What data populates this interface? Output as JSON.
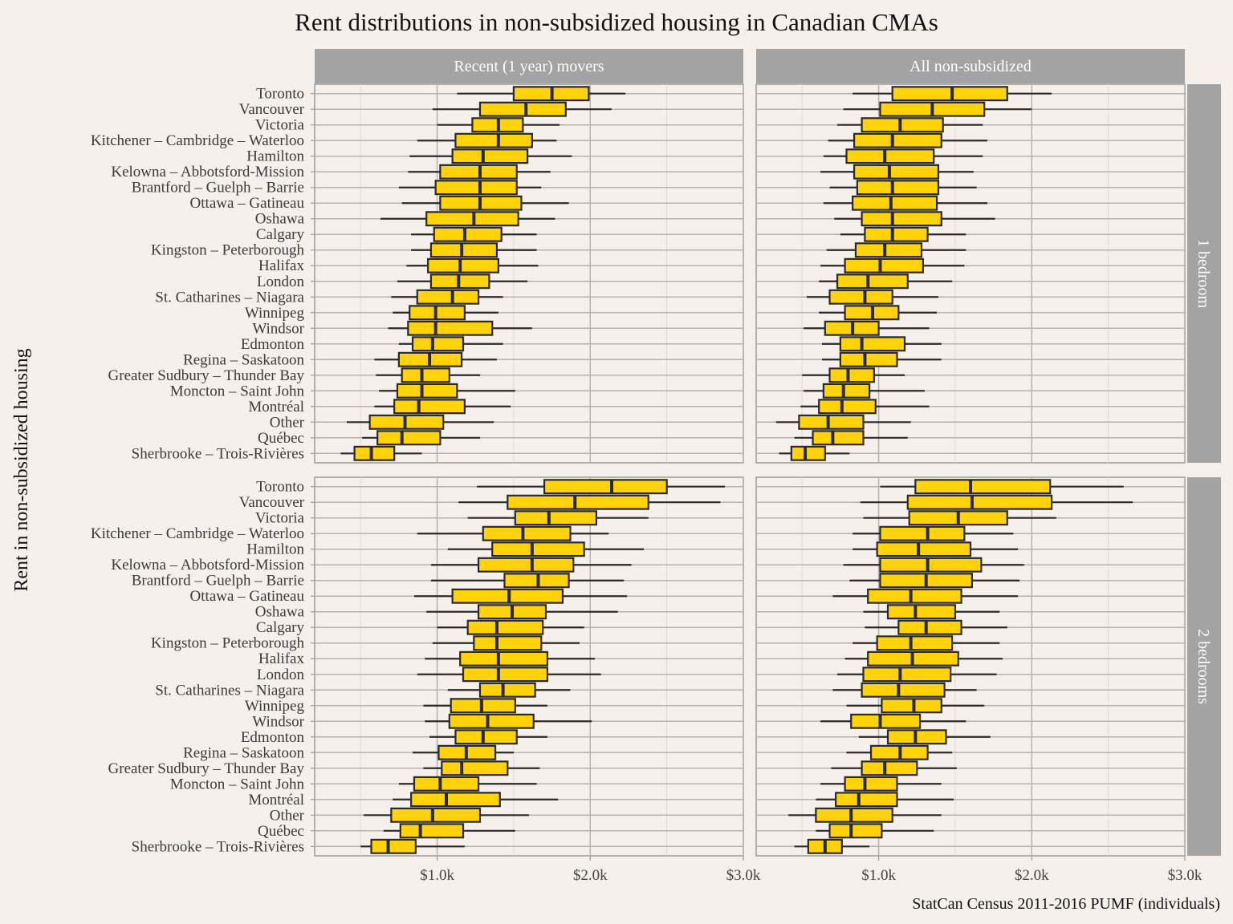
{
  "chart_data": {
    "type": "boxplot",
    "title": "Rent distributions in non-subsidized housing in Canadian CMAs",
    "xlabel": "",
    "ylabel": "Rent in non-subsidized housing",
    "caption": "StatCan Census 2011-2016 PUMF (individuals)",
    "x_unit": "thousand CAD per month",
    "xlim": [
      0.2,
      3.0
    ],
    "x_ticks": [
      1.0,
      2.0,
      3.0
    ],
    "x_tick_labels": [
      "$1.0k",
      "$2.0k",
      "$3.0k"
    ],
    "grid": true,
    "box_fill": "#FFD20A",
    "box_stroke": "#2a2a2a",
    "strip_fill": "#a3a3a3",
    "panel_background": "#f5f0eb",
    "columns": [
      "Recent (1 year) movers",
      "All non-subsidized"
    ],
    "rows": [
      "1 bedroom",
      "2 bedrooms"
    ],
    "categories": [
      "Toronto",
      "Vancouver",
      "Victoria",
      "Kitchener – Cambridge – Waterloo",
      "Hamilton",
      "Kelowna – Abbotsford-Mission",
      "Brantford – Guelph – Barrie",
      "Ottawa – Gatineau",
      "Oshawa",
      "Calgary",
      "Kingston – Peterborough",
      "Halifax",
      "London",
      "St. Catharines – Niagara",
      "Winnipeg",
      "Windsor",
      "Edmonton",
      "Regina – Saskatoon",
      "Greater Sudbury – Thunder Bay",
      "Moncton – Saint John",
      "Montréal",
      "Other",
      "Québec",
      "Sherbrooke – Trois-Rivières"
    ],
    "stat_order": [
      "whisker_low",
      "q1",
      "median",
      "q3",
      "whisker_high"
    ],
    "panels": [
      {
        "column": "Recent (1 year) movers",
        "row": "1 bedroom",
        "stats": [
          [
            1.13,
            1.5,
            1.75,
            1.99,
            2.23
          ],
          [
            0.97,
            1.28,
            1.58,
            1.84,
            2.14
          ],
          [
            1.0,
            1.23,
            1.4,
            1.56,
            1.8
          ],
          [
            0.87,
            1.12,
            1.4,
            1.62,
            1.78
          ],
          [
            0.82,
            1.1,
            1.3,
            1.59,
            1.88
          ],
          [
            0.81,
            1.02,
            1.28,
            1.52,
            1.74
          ],
          [
            0.75,
            0.99,
            1.28,
            1.52,
            1.68
          ],
          [
            0.77,
            1.02,
            1.28,
            1.55,
            1.86
          ],
          [
            0.63,
            0.93,
            1.24,
            1.53,
            1.77
          ],
          [
            0.83,
            0.98,
            1.18,
            1.42,
            1.65
          ],
          [
            0.83,
            0.96,
            1.16,
            1.39,
            1.65
          ],
          [
            0.8,
            0.94,
            1.15,
            1.4,
            1.66
          ],
          [
            0.74,
            0.96,
            1.14,
            1.34,
            1.59
          ],
          [
            0.7,
            0.87,
            1.1,
            1.27,
            1.43
          ],
          [
            0.71,
            0.82,
            0.99,
            1.18,
            1.4
          ],
          [
            0.68,
            0.81,
            0.99,
            1.36,
            1.62
          ],
          [
            0.75,
            0.84,
            0.97,
            1.17,
            1.43
          ],
          [
            0.59,
            0.75,
            0.95,
            1.16,
            1.39
          ],
          [
            0.6,
            0.77,
            0.9,
            1.08,
            1.28
          ],
          [
            0.62,
            0.74,
            0.9,
            1.13,
            1.51
          ],
          [
            0.59,
            0.72,
            0.88,
            1.18,
            1.48
          ],
          [
            0.41,
            0.56,
            0.79,
            1.04,
            1.37
          ],
          [
            0.51,
            0.61,
            0.77,
            1.02,
            1.28
          ],
          [
            0.37,
            0.46,
            0.57,
            0.72,
            0.9
          ]
        ]
      },
      {
        "column": "All non-subsidized",
        "row": "1 bedroom",
        "stats": [
          [
            0.83,
            1.09,
            1.48,
            1.84,
            2.13
          ],
          [
            0.77,
            1.01,
            1.35,
            1.69,
            2.0
          ],
          [
            0.73,
            0.89,
            1.14,
            1.42,
            1.68
          ],
          [
            0.67,
            0.84,
            1.09,
            1.41,
            1.71
          ],
          [
            0.64,
            0.79,
            1.04,
            1.36,
            1.68
          ],
          [
            0.62,
            0.84,
            1.07,
            1.39,
            1.62
          ],
          [
            0.68,
            0.86,
            1.09,
            1.39,
            1.64
          ],
          [
            0.64,
            0.83,
            1.08,
            1.38,
            1.71
          ],
          [
            0.71,
            0.89,
            1.09,
            1.41,
            1.76
          ],
          [
            0.75,
            0.91,
            1.09,
            1.32,
            1.57
          ],
          [
            0.66,
            0.85,
            1.04,
            1.28,
            1.57
          ],
          [
            0.62,
            0.78,
            1.01,
            1.29,
            1.56
          ],
          [
            0.61,
            0.73,
            0.93,
            1.19,
            1.48
          ],
          [
            0.53,
            0.68,
            0.91,
            1.09,
            1.39
          ],
          [
            0.61,
            0.78,
            0.96,
            1.13,
            1.38
          ],
          [
            0.51,
            0.65,
            0.83,
            1.0,
            1.33
          ],
          [
            0.63,
            0.75,
            0.89,
            1.17,
            1.41
          ],
          [
            0.63,
            0.75,
            0.91,
            1.12,
            1.41
          ],
          [
            0.5,
            0.68,
            0.8,
            0.97,
            1.17
          ],
          [
            0.51,
            0.64,
            0.77,
            0.94,
            1.3
          ],
          [
            0.49,
            0.61,
            0.76,
            0.98,
            1.33
          ],
          [
            0.33,
            0.48,
            0.67,
            0.9,
            1.21
          ],
          [
            0.45,
            0.57,
            0.7,
            0.9,
            1.19
          ],
          [
            0.35,
            0.43,
            0.52,
            0.65,
            0.81
          ]
        ]
      },
      {
        "column": "Recent (1 year) movers",
        "row": "2 bedrooms",
        "stats": [
          [
            1.26,
            1.7,
            2.14,
            2.5,
            2.88
          ],
          [
            1.14,
            1.46,
            1.9,
            2.38,
            2.85
          ],
          [
            1.2,
            1.51,
            1.73,
            2.04,
            2.38
          ],
          [
            0.87,
            1.3,
            1.56,
            1.87,
            2.12
          ],
          [
            1.07,
            1.36,
            1.62,
            1.96,
            2.35
          ],
          [
            0.96,
            1.27,
            1.62,
            1.89,
            2.27
          ],
          [
            0.96,
            1.44,
            1.66,
            1.86,
            2.22
          ],
          [
            0.85,
            1.1,
            1.47,
            1.82,
            2.24
          ],
          [
            0.93,
            1.27,
            1.49,
            1.71,
            2.18
          ],
          [
            1.0,
            1.2,
            1.39,
            1.69,
            1.96
          ],
          [
            0.97,
            1.24,
            1.39,
            1.68,
            1.93
          ],
          [
            0.92,
            1.15,
            1.4,
            1.72,
            2.03
          ],
          [
            0.87,
            1.17,
            1.4,
            1.72,
            2.07
          ],
          [
            1.07,
            1.28,
            1.43,
            1.64,
            1.87
          ],
          [
            0.91,
            1.09,
            1.29,
            1.51,
            1.72
          ],
          [
            0.92,
            1.08,
            1.33,
            1.63,
            2.01
          ],
          [
            0.95,
            1.12,
            1.3,
            1.52,
            1.72
          ],
          [
            0.84,
            1.01,
            1.19,
            1.38,
            1.5
          ],
          [
            0.91,
            1.03,
            1.16,
            1.46,
            1.67
          ],
          [
            0.75,
            0.85,
            1.02,
            1.27,
            1.65
          ],
          [
            0.71,
            0.83,
            1.06,
            1.41,
            1.79
          ],
          [
            0.52,
            0.7,
            0.97,
            1.28,
            1.6
          ],
          [
            0.65,
            0.76,
            0.89,
            1.17,
            1.51
          ],
          [
            0.5,
            0.57,
            0.68,
            0.86,
            1.18
          ]
        ]
      },
      {
        "column": "All non-subsidized",
        "row": "2 bedrooms",
        "stats": [
          [
            1.01,
            1.24,
            1.6,
            2.12,
            2.6
          ],
          [
            0.88,
            1.19,
            1.61,
            2.13,
            2.66
          ],
          [
            0.9,
            1.2,
            1.52,
            1.84,
            2.16
          ],
          [
            0.83,
            1.01,
            1.32,
            1.56,
            1.88
          ],
          [
            0.83,
            0.99,
            1.26,
            1.6,
            1.91
          ],
          [
            0.77,
            1.01,
            1.32,
            1.67,
            1.95
          ],
          [
            0.81,
            1.01,
            1.31,
            1.61,
            1.92
          ],
          [
            0.7,
            0.93,
            1.21,
            1.54,
            1.91
          ],
          [
            0.9,
            1.06,
            1.24,
            1.5,
            1.79
          ],
          [
            0.91,
            1.13,
            1.31,
            1.54,
            1.84
          ],
          [
            0.83,
            0.99,
            1.21,
            1.48,
            1.79
          ],
          [
            0.78,
            0.93,
            1.22,
            1.52,
            1.81
          ],
          [
            0.73,
            0.9,
            1.14,
            1.47,
            1.77
          ],
          [
            0.7,
            0.89,
            1.13,
            1.43,
            1.64
          ],
          [
            0.79,
            1.02,
            1.23,
            1.41,
            1.69
          ],
          [
            0.62,
            0.82,
            1.01,
            1.27,
            1.57
          ],
          [
            0.87,
            1.06,
            1.24,
            1.44,
            1.73
          ],
          [
            0.79,
            0.95,
            1.14,
            1.32,
            1.48
          ],
          [
            0.69,
            0.89,
            1.04,
            1.25,
            1.51
          ],
          [
            0.62,
            0.78,
            0.91,
            1.12,
            1.41
          ],
          [
            0.59,
            0.72,
            0.87,
            1.12,
            1.49
          ],
          [
            0.41,
            0.59,
            0.82,
            1.09,
            1.41
          ],
          [
            0.59,
            0.68,
            0.82,
            1.02,
            1.36
          ],
          [
            0.45,
            0.54,
            0.65,
            0.76,
            0.94
          ]
        ]
      }
    ]
  }
}
